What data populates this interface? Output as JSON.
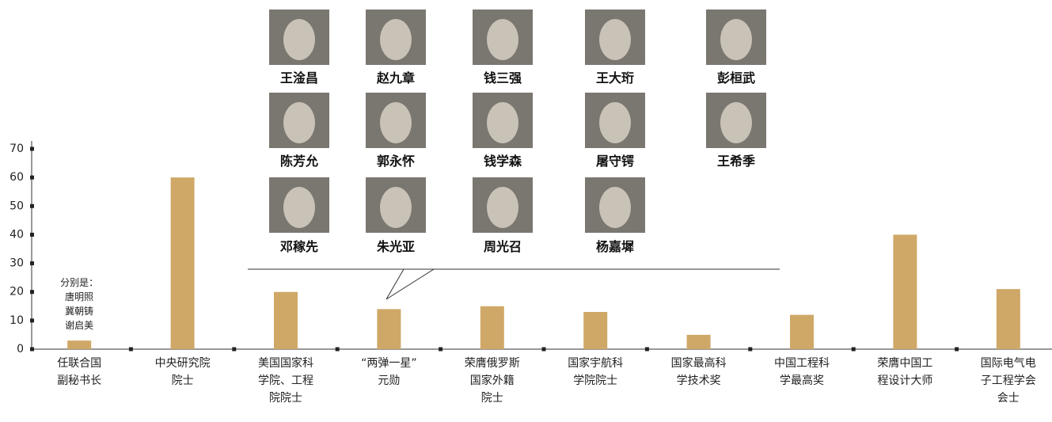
{
  "chart_data": {
    "type": "bar",
    "categories": [
      "任联合国\n副秘书长",
      "中央研究院\n院士",
      "美国国家科\n学院、工程\n院院士",
      "“两弹一星”\n元勋",
      "荣膺俄罗斯\n国家外籍\n院士",
      "国家宇航科\n学院院士",
      "国家最高科\n学技术奖",
      "中国工程科\n学最高奖",
      "荣膺中国工\n程设计大师",
      "国际电气电\n子工程学会\n会士"
    ],
    "values": [
      3,
      60,
      20,
      14,
      15,
      13,
      5,
      12,
      40,
      21
    ],
    "color": "#cfa867",
    "ylim": [
      0,
      70
    ],
    "yticks": [
      0,
      10,
      20,
      30,
      40,
      50,
      60,
      70
    ],
    "annotations": [
      {
        "text": "分别是：\n唐明照\n冀朝铸\n谢启美",
        "category": 0
      }
    ],
    "callout": {
      "category": 3,
      "portraits": [
        [
          "王淦昌",
          "赵九章",
          "钱三强",
          "王大珩",
          "彭桓武"
        ],
        [
          "陈芳允",
          "郭永怀",
          "钱学森",
          "屠守锷",
          "王希季"
        ],
        [
          "邓稼先",
          "朱光亚",
          "周光召",
          "杨嘉墀"
        ]
      ]
    }
  }
}
